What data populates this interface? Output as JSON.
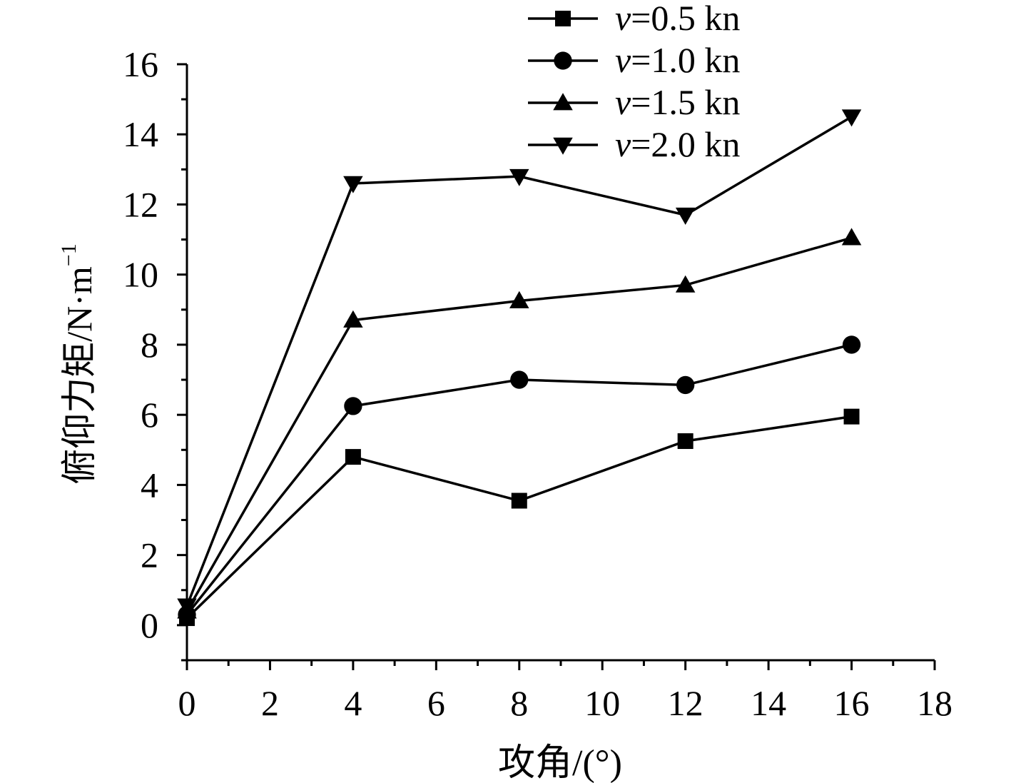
{
  "chart_data": {
    "type": "line",
    "xlabel": "攻角/(°)",
    "ylabel": "俯仰力矩/N·m",
    "ylabel_sup": "−1",
    "xlim": [
      0,
      18
    ],
    "ylim": [
      -1,
      16
    ],
    "x_ticks": [
      0,
      2,
      4,
      6,
      8,
      10,
      12,
      14,
      16,
      18
    ],
    "y_ticks": [
      0,
      2,
      4,
      6,
      8,
      10,
      12,
      14,
      16
    ],
    "x_tick_labels": [
      "0",
      "2",
      "4",
      "6",
      "8",
      "10",
      "12",
      "14",
      "16",
      "18"
    ],
    "y_tick_labels": [
      "0",
      "2",
      "4",
      "6",
      "8",
      "10",
      "12",
      "14",
      "16"
    ],
    "x_minor_step": 1,
    "y_minor_step": 1,
    "grid": false,
    "legend_position": "top-right",
    "x": [
      0,
      4,
      8,
      12,
      16
    ],
    "series": [
      {
        "name": "v=0.5 kn",
        "name_var": "v",
        "name_rest": "=0.5 kn",
        "marker": "square",
        "values": [
          0.2,
          4.8,
          3.55,
          5.25,
          5.95
        ]
      },
      {
        "name": "v=1.0 kn",
        "name_var": "v",
        "name_rest": "=1.0 kn",
        "marker": "circle",
        "values": [
          0.3,
          6.25,
          7.0,
          6.85,
          8.0
        ]
      },
      {
        "name": "v=1.5 kn",
        "name_var": "v",
        "name_rest": "=1.5 kn",
        "marker": "triangle-up",
        "values": [
          0.4,
          8.7,
          9.25,
          9.7,
          11.05
        ]
      },
      {
        "name": "v=2.0 kn",
        "name_var": "v",
        "name_rest": "=2.0 kn",
        "marker": "triangle-down",
        "values": [
          0.55,
          12.6,
          12.8,
          11.7,
          14.5
        ]
      }
    ]
  }
}
